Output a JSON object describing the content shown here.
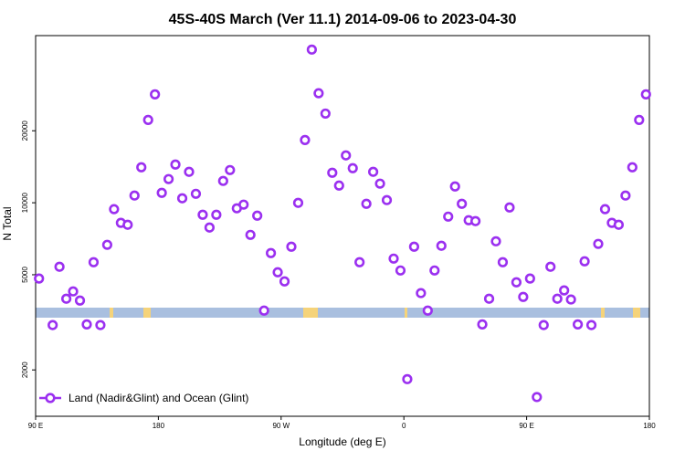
{
  "chart_data": {
    "type": "scatter",
    "title": "45S-40S March (Ver 11.1)   2014-09-06 to 2023-04-30",
    "x_label": "Longitude (deg E)",
    "y_label": "N Total",
    "log_y": true,
    "legend": "bottom-left",
    "xlim": [
      90,
      540
    ],
    "ylim": [
      1280,
      50000
    ],
    "xticks": [
      {
        "value": 90,
        "label": "90 E"
      },
      180,
      {
        "value": 270,
        "label": "90 W"
      },
      {
        "value": 360,
        "label": "0"
      },
      {
        "value": 450,
        "label": "90 E"
      },
      {
        "value": 540,
        "label": "180"
      }
    ],
    "yticks": [
      2000,
      5000,
      10000,
      20000
    ],
    "x": [
      92.5,
      102.5,
      107.5,
      112.5,
      117.5,
      122.5,
      127.5,
      132.5,
      137.5,
      142.5,
      147.5,
      152.5,
      157.5,
      162.5,
      167.5,
      172.5,
      177.5,
      182.5,
      187.5,
      192.5,
      197.5,
      202.5,
      207.5,
      212.5,
      217.5,
      222.5,
      227.5,
      232.5,
      237.5,
      242.5,
      247.5,
      252.5,
      257.5,
      262.5,
      267.5,
      272.5,
      277.5,
      282.5,
      287.5,
      292.5,
      297.5,
      302.5,
      307.5,
      312.5,
      317.5,
      322.5,
      327.5,
      332.5,
      337.5,
      342.5,
      347.5,
      352.5,
      357.5,
      362.5,
      367.5,
      372.5,
      377.5,
      382.5,
      387.5,
      392.5,
      397.5,
      402.5,
      407.5,
      412.5,
      417.5,
      422.5,
      427.5,
      432.5,
      437.5,
      442.5,
      447.5,
      452.5,
      457.5,
      462.5,
      467.5,
      472.5,
      477.5,
      482.5,
      487.5,
      492.5,
      497.5,
      502.5,
      507.5,
      512.5,
      517.5,
      522.5,
      527.5,
      532.5,
      537.5
    ],
    "series": [
      {
        "name": "Land (Nadir&Glint) and Ocean (Glint)",
        "color": "#9b30f0",
        "values": [
          4820,
          3080,
          5400,
          3970,
          4260,
          3900,
          3100,
          5640,
          3080,
          6670,
          9400,
          8240,
          8090,
          10720,
          14070,
          22200,
          28400,
          11000,
          12560,
          14450,
          10440,
          13470,
          10900,
          8910,
          7880,
          8910,
          12340,
          13700,
          9480,
          9820,
          7340,
          8830,
          3540,
          6160,
          5120,
          4690,
          6550,
          9990,
          18300,
          43700,
          28700,
          23600,
          13350,
          11800,
          15780,
          13950,
          5640,
          9900,
          13470,
          12020,
          10260,
          5840,
          5210,
          1830,
          6550,
          4190,
          3540,
          5210,
          6610,
          8750,
          11700,
          9900,
          8450,
          8380,
          3100,
          3970,
          6900,
          5640,
          9560,
          4650,
          4040,
          4820,
          1540,
          3080,
          5400,
          3970,
          4300,
          3940,
          3100,
          5690,
          3080,
          6730,
          9400,
          8240,
          8090,
          10720,
          14070,
          22200,
          28400
        ]
      }
    ]
  }
}
